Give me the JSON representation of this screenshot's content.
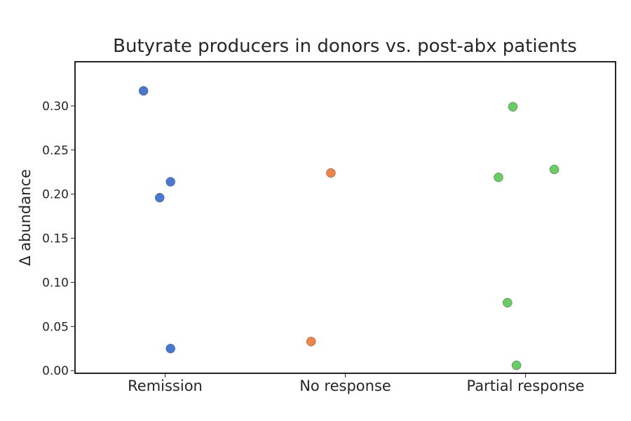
{
  "chart_data": {
    "type": "scatter",
    "title": "Butyrate producers in donors vs. post-abx patients",
    "xlabel": "",
    "ylabel": "Δ abundance",
    "categories": [
      "Remission",
      "No response",
      "Partial response"
    ],
    "ylim": [
      -0.003,
      0.35
    ],
    "yticks": [
      0.0,
      0.05,
      0.1,
      0.15,
      0.2,
      0.25,
      0.3
    ],
    "ytick_labels": [
      "0.00",
      "0.05",
      "0.10",
      "0.15",
      "0.20",
      "0.25",
      "0.30"
    ],
    "grid": false,
    "series": [
      {
        "category": "Remission",
        "color": "#4878d0",
        "points": [
          {
            "jitter": -0.12,
            "y": 0.317
          },
          {
            "jitter": 0.03,
            "y": 0.214
          },
          {
            "jitter": -0.03,
            "y": 0.196
          },
          {
            "jitter": 0.03,
            "y": 0.025
          }
        ]
      },
      {
        "category": "No response",
        "color": "#ee854a",
        "points": [
          {
            "jitter": -0.08,
            "y": 0.224
          },
          {
            "jitter": -0.19,
            "y": 0.033
          }
        ]
      },
      {
        "category": "Partial response",
        "color": "#6acc64",
        "points": [
          {
            "jitter": -0.07,
            "y": 0.299
          },
          {
            "jitter": 0.16,
            "y": 0.228
          },
          {
            "jitter": -0.15,
            "y": 0.219
          },
          {
            "jitter": -0.1,
            "y": 0.077
          },
          {
            "jitter": -0.05,
            "y": 0.006
          }
        ]
      }
    ]
  }
}
